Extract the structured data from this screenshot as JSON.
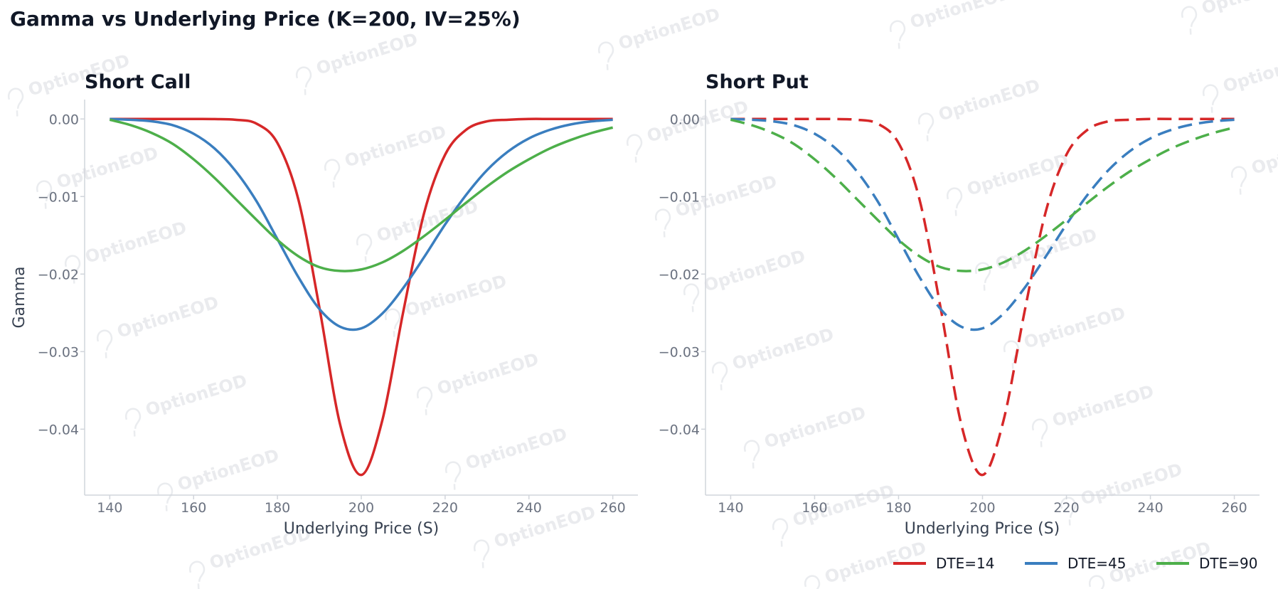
{
  "figure": {
    "title": "Gamma vs Underlying Price (K=200, IV=25%)",
    "watermark": "OptionEOD",
    "colors": {
      "DTE=14": "#d62728",
      "DTE=45": "#3a7ebf",
      "DTE=90": "#4daf4a"
    }
  },
  "legend": {
    "placement": "bottom-right",
    "entries": [
      "DTE=14",
      "DTE=45",
      "DTE=90"
    ]
  },
  "chart_data": [
    {
      "type": "line",
      "title": "Short Call",
      "xlabel": "Underlying Price (S)",
      "ylabel": "Gamma",
      "line_style": "solid",
      "xlim": [
        134,
        266
      ],
      "ylim": [
        -0.0485,
        0.0025
      ],
      "xticks": [
        140,
        160,
        180,
        200,
        220,
        240,
        260
      ],
      "yticks": [
        0.0,
        -0.01,
        -0.02,
        -0.03,
        -0.04
      ],
      "ytick_labels": [
        "0.00",
        "−0.01",
        "−0.02",
        "−0.03",
        "−0.04"
      ],
      "grid": false,
      "x": [
        140,
        145,
        150,
        155,
        160,
        165,
        170,
        175,
        180,
        185,
        190,
        195,
        200,
        205,
        210,
        215,
        220,
        225,
        230,
        235,
        240,
        245,
        250,
        255,
        260
      ],
      "series": [
        {
          "name": "DTE=14",
          "values": [
            0.0,
            0.0,
            0.0,
            0.0,
            0.0,
            -1e-05,
            -0.0001,
            -0.0006,
            -0.0031,
            -0.0104,
            -0.0243,
            -0.0395,
            -0.0459,
            -0.0389,
            -0.0249,
            -0.0121,
            -0.0046,
            -0.0014,
            -0.0003,
            -0.0001,
            0.0,
            0.0,
            0.0,
            0.0,
            0.0
          ]
        },
        {
          "name": "DTE=45",
          "values": [
            0.0,
            -0.0001,
            -0.0003,
            -0.0008,
            -0.0019,
            -0.0038,
            -0.0067,
            -0.0106,
            -0.0155,
            -0.0204,
            -0.0245,
            -0.0268,
            -0.027,
            -0.0251,
            -0.0218,
            -0.0178,
            -0.0136,
            -0.0098,
            -0.0066,
            -0.0042,
            -0.0025,
            -0.0014,
            -0.0007,
            -0.0003,
            -0.0001
          ]
        },
        {
          "name": "DTE=90",
          "values": [
            -0.0001,
            -0.0008,
            -0.0018,
            -0.0032,
            -0.0052,
            -0.0076,
            -0.0103,
            -0.013,
            -0.0156,
            -0.0177,
            -0.0191,
            -0.0196,
            -0.0194,
            -0.0185,
            -0.017,
            -0.0151,
            -0.013,
            -0.0108,
            -0.0087,
            -0.0068,
            -0.0052,
            -0.0038,
            -0.0027,
            -0.0018,
            -0.0011
          ]
        }
      ]
    },
    {
      "type": "line",
      "title": "Short Put",
      "xlabel": "Underlying Price (S)",
      "ylabel": "",
      "line_style": "dashed",
      "xlim": [
        134,
        266
      ],
      "ylim": [
        -0.0485,
        0.0025
      ],
      "xticks": [
        140,
        160,
        180,
        200,
        220,
        240,
        260
      ],
      "yticks": [
        0.0,
        -0.01,
        -0.02,
        -0.03,
        -0.04
      ],
      "ytick_labels": [
        "0.00",
        "−0.01",
        "−0.02",
        "−0.03",
        "−0.04"
      ],
      "grid": false,
      "x": [
        140,
        145,
        150,
        155,
        160,
        165,
        170,
        175,
        180,
        185,
        190,
        195,
        200,
        205,
        210,
        215,
        220,
        225,
        230,
        235,
        240,
        245,
        250,
        255,
        260
      ],
      "series": [
        {
          "name": "DTE=14",
          "values": [
            0.0,
            0.0,
            0.0,
            0.0,
            0.0,
            -1e-05,
            -0.0001,
            -0.0006,
            -0.0031,
            -0.0104,
            -0.0243,
            -0.0395,
            -0.0459,
            -0.0389,
            -0.0249,
            -0.0121,
            -0.0046,
            -0.0014,
            -0.0003,
            -0.0001,
            0.0,
            0.0,
            0.0,
            0.0,
            0.0
          ]
        },
        {
          "name": "DTE=45",
          "values": [
            0.0,
            -0.0001,
            -0.0003,
            -0.0008,
            -0.0019,
            -0.0038,
            -0.0067,
            -0.0106,
            -0.0155,
            -0.0204,
            -0.0245,
            -0.0268,
            -0.027,
            -0.0251,
            -0.0218,
            -0.0178,
            -0.0136,
            -0.0098,
            -0.0066,
            -0.0042,
            -0.0025,
            -0.0014,
            -0.0007,
            -0.0003,
            -0.0001
          ]
        },
        {
          "name": "DTE=90",
          "values": [
            -0.0001,
            -0.0008,
            -0.0018,
            -0.0032,
            -0.0052,
            -0.0076,
            -0.0103,
            -0.013,
            -0.0156,
            -0.0177,
            -0.0191,
            -0.0196,
            -0.0194,
            -0.0185,
            -0.017,
            -0.0151,
            -0.013,
            -0.0108,
            -0.0087,
            -0.0068,
            -0.0052,
            -0.0038,
            -0.0027,
            -0.0018,
            -0.0011
          ]
        }
      ]
    }
  ]
}
